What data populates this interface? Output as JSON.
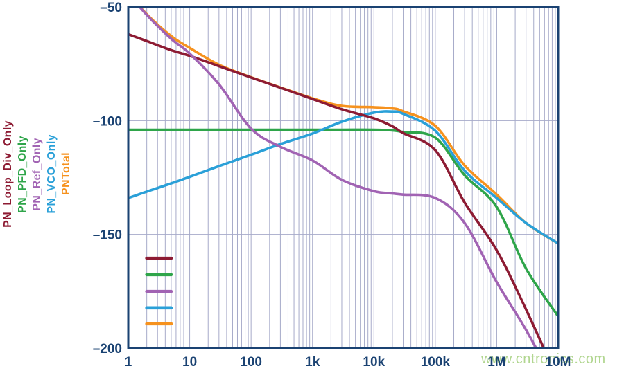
{
  "watermark_text": "www.cntronics.com",
  "chart_data": {
    "type": "line",
    "title": "",
    "xlabel": "",
    "ylabel": "",
    "x_scale": "log",
    "x_range": [
      1,
      10000000
    ],
    "y_range": [
      -200,
      -50
    ],
    "grid": "on",
    "legend_position": "inside-bottom-left",
    "x_tick_labels": [
      "1",
      "10",
      "100",
      "1k",
      "10k",
      "100k",
      "1M",
      "10M"
    ],
    "x_tick_values": [
      1,
      10,
      100,
      1000,
      10000,
      100000,
      1000000,
      10000000
    ],
    "y_tick_labels": [
      "–50",
      "–100",
      "–150",
      "–200"
    ],
    "y_tick_values": [
      -50,
      -100,
      -150,
      -200
    ],
    "frequencies": [
      1,
      2,
      5,
      10,
      30,
      100,
      300,
      1000,
      3000,
      10000,
      20000,
      30000,
      100000,
      300000,
      1000000,
      3000000,
      10000000
    ],
    "series": [
      {
        "name": "PN_Loop_Div_Only",
        "color": "#8d1b33",
        "values": [
          -62,
          -65,
          -69,
          -71.5,
          -76,
          -81,
          -85.5,
          -90.5,
          -95,
          -99,
          -102.5,
          -105.5,
          -113,
          -136,
          -157,
          -183,
          -214
        ]
      },
      {
        "name": "PN_PFD_Only",
        "color": "#2fa54a",
        "values": [
          -104,
          -104,
          -104,
          -104,
          -104,
          -104,
          -104,
          -104,
          -104,
          -104,
          -104.3,
          -105,
          -107.5,
          -124,
          -138,
          -165,
          -186
        ]
      },
      {
        "name": "PN_Ref_Only",
        "color": "#a163b3",
        "values": [
          -44,
          -53.5,
          -64,
          -70.5,
          -84,
          -103.5,
          -111.5,
          -117.5,
          -126,
          -131,
          -132,
          -132.5,
          -134,
          -145,
          -171,
          -192,
          -218
        ]
      },
      {
        "name": "PN_VCO_Only",
        "color": "#2aa0d8",
        "values": [
          -134,
          -131.2,
          -127.6,
          -124.7,
          -120,
          -115,
          -110.3,
          -105.7,
          -100.5,
          -96.5,
          -96,
          -97,
          -104.5,
          -122,
          -134,
          -145,
          -154
        ]
      },
      {
        "name": "PNTotal",
        "color": "#f6921e",
        "values": [
          -43.9,
          -53.2,
          -62.8,
          -68,
          -75.4,
          -80.9,
          -85.4,
          -90.2,
          -93.5,
          -94.1,
          -94.6,
          -95.9,
          -102.3,
          -119.7,
          -132.5,
          -145,
          -154
        ]
      }
    ],
    "legend": {
      "x_start": 2,
      "x_end": 5,
      "y_positions": [
        -160.5,
        -167.7,
        -175.1,
        -182.3,
        -189.3
      ]
    },
    "colors": {
      "frame": "#1a4272",
      "grid": "#a6aac9",
      "tick_text": "#1a4272"
    }
  }
}
